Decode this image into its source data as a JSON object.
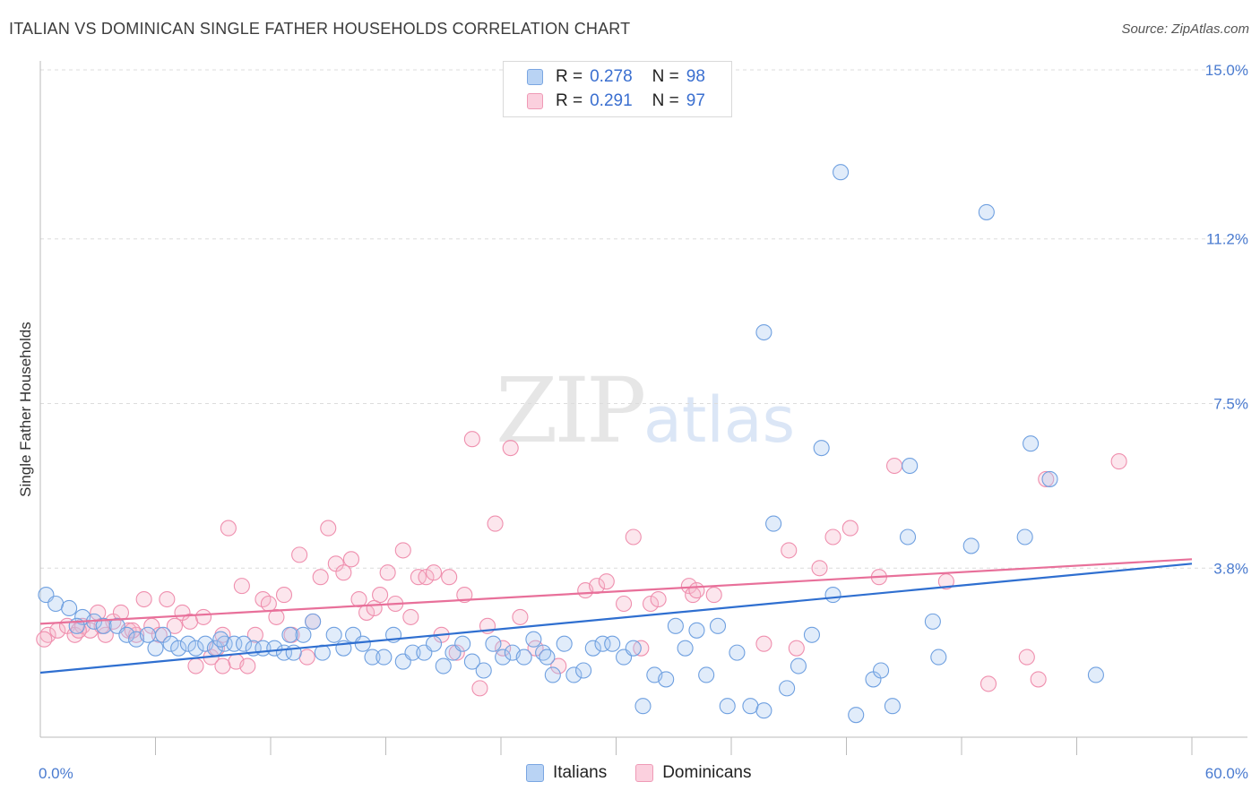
{
  "header": {
    "title": "ITALIAN VS DOMINICAN SINGLE FATHER HOUSEHOLDS CORRELATION CHART",
    "source": "Source: ZipAtlas.com"
  },
  "watermark": {
    "zip": "ZIP",
    "atlas": "atlas"
  },
  "legend": {
    "r_label": "R =",
    "n_label": "N =",
    "rows": [
      {
        "r": "0.278",
        "n": "98",
        "color": "#a8c8f0"
      },
      {
        "r": "0.291",
        "n": "97",
        "color": "#f7b8cc"
      }
    ]
  },
  "bottom_legend": [
    {
      "label": "Italians",
      "color": "#a8c8f0"
    },
    {
      "label": "Dominicans",
      "color": "#f7b8cc"
    }
  ],
  "chart_data": {
    "type": "scatter",
    "title": "ITALIAN VS DOMINICAN SINGLE FATHER HOUSEHOLDS CORRELATION CHART",
    "ylabel": "Single Father Households",
    "xlabel": "",
    "xlim": [
      0,
      60
    ],
    "ylim": [
      0,
      15
    ],
    "y_ticks": [
      {
        "value": 3.8,
        "label": "3.8%"
      },
      {
        "value": 7.5,
        "label": "7.5%"
      },
      {
        "value": 11.2,
        "label": "11.2%"
      },
      {
        "value": 15.0,
        "label": "15.0%"
      }
    ],
    "x_tick_labels": [
      {
        "value": 0,
        "label": "0.0%"
      },
      {
        "value": 60,
        "label": "60.0%"
      }
    ],
    "x_minor_ticks": [
      6,
      12,
      18,
      24,
      30,
      36,
      42,
      48,
      54
    ],
    "grid": true,
    "colors": {
      "italians": "#6fa0e0",
      "dominicans": "#ef8fae",
      "italians_line": "#2f6fd0",
      "dominicans_line": "#e8709a"
    },
    "series": [
      {
        "name": "Italians",
        "trend": {
          "x0": 0,
          "y0": 1.45,
          "x1": 60,
          "y1": 3.9
        },
        "points": [
          [
            0.3,
            3.2
          ],
          [
            0.8,
            3.0
          ],
          [
            1.5,
            2.9
          ],
          [
            2.2,
            2.7
          ],
          [
            2.8,
            2.6
          ],
          [
            3.3,
            2.5
          ],
          [
            4.0,
            2.5
          ],
          [
            4.5,
            2.3
          ],
          [
            5.0,
            2.2
          ],
          [
            5.6,
            2.3
          ],
          [
            6.0,
            2.0
          ],
          [
            6.4,
            2.3
          ],
          [
            6.8,
            2.1
          ],
          [
            7.2,
            2.0
          ],
          [
            7.7,
            2.1
          ],
          [
            8.1,
            2.0
          ],
          [
            8.6,
            2.1
          ],
          [
            9.1,
            2.0
          ],
          [
            9.6,
            2.1
          ],
          [
            10.1,
            2.1
          ],
          [
            10.6,
            2.1
          ],
          [
            11.1,
            2.0
          ],
          [
            11.6,
            2.0
          ],
          [
            12.2,
            2.0
          ],
          [
            12.7,
            1.9
          ],
          [
            13.2,
            1.9
          ],
          [
            13.7,
            2.3
          ],
          [
            14.2,
            2.6
          ],
          [
            14.7,
            1.9
          ],
          [
            15.3,
            2.3
          ],
          [
            15.8,
            2.0
          ],
          [
            16.3,
            2.3
          ],
          [
            16.8,
            2.1
          ],
          [
            17.3,
            1.8
          ],
          [
            17.9,
            1.8
          ],
          [
            18.4,
            2.3
          ],
          [
            18.9,
            1.7
          ],
          [
            19.4,
            1.9
          ],
          [
            20.0,
            1.9
          ],
          [
            20.5,
            2.1
          ],
          [
            21.0,
            1.6
          ],
          [
            21.5,
            1.9
          ],
          [
            22.0,
            2.1
          ],
          [
            22.5,
            1.7
          ],
          [
            23.1,
            1.5
          ],
          [
            23.6,
            2.1
          ],
          [
            24.1,
            1.8
          ],
          [
            24.6,
            1.9
          ],
          [
            25.2,
            1.8
          ],
          [
            25.7,
            2.2
          ],
          [
            26.2,
            1.9
          ],
          [
            26.7,
            1.4
          ],
          [
            27.3,
            2.1
          ],
          [
            27.8,
            1.4
          ],
          [
            28.3,
            1.5
          ],
          [
            28.8,
            2.0
          ],
          [
            29.3,
            2.1
          ],
          [
            29.8,
            2.1
          ],
          [
            30.4,
            1.8
          ],
          [
            30.9,
            2.0
          ],
          [
            31.4,
            0.7
          ],
          [
            32.0,
            1.4
          ],
          [
            32.6,
            1.3
          ],
          [
            33.1,
            2.5
          ],
          [
            33.6,
            2.0
          ],
          [
            34.2,
            2.4
          ],
          [
            34.7,
            1.4
          ],
          [
            35.3,
            2.5
          ],
          [
            35.8,
            0.7
          ],
          [
            36.3,
            1.9
          ],
          [
            37.0,
            0.7
          ],
          [
            37.7,
            0.6
          ],
          [
            38.2,
            4.8
          ],
          [
            38.9,
            1.1
          ],
          [
            39.5,
            1.6
          ],
          [
            40.2,
            2.3
          ],
          [
            40.7,
            6.5
          ],
          [
            41.3,
            3.2
          ],
          [
            42.5,
            0.5
          ],
          [
            43.4,
            1.3
          ],
          [
            43.8,
            1.5
          ],
          [
            44.4,
            0.7
          ],
          [
            45.2,
            4.5
          ],
          [
            45.3,
            6.1
          ],
          [
            46.5,
            2.6
          ],
          [
            46.8,
            1.8
          ],
          [
            48.5,
            4.3
          ],
          [
            49.3,
            11.8
          ],
          [
            51.3,
            4.5
          ],
          [
            51.6,
            6.6
          ],
          [
            52.6,
            5.8
          ],
          [
            55.0,
            1.4
          ],
          [
            37.7,
            9.1
          ],
          [
            41.7,
            12.7
          ],
          [
            13.0,
            2.3
          ],
          [
            9.4,
            2.2
          ],
          [
            26.4,
            1.8
          ],
          [
            1.9,
            2.5
          ]
        ]
      },
      {
        "name": "Dominicans",
        "trend": {
          "x0": 0,
          "y0": 2.55,
          "x1": 60,
          "y1": 4.0
        },
        "points": [
          [
            0.4,
            2.3
          ],
          [
            0.9,
            2.4
          ],
          [
            1.4,
            2.5
          ],
          [
            1.8,
            2.3
          ],
          [
            2.2,
            2.5
          ],
          [
            2.6,
            2.4
          ],
          [
            3.0,
            2.8
          ],
          [
            3.4,
            2.3
          ],
          [
            3.8,
            2.6
          ],
          [
            4.2,
            2.8
          ],
          [
            4.6,
            2.4
          ],
          [
            5.0,
            2.3
          ],
          [
            5.4,
            3.1
          ],
          [
            5.8,
            2.5
          ],
          [
            6.2,
            2.3
          ],
          [
            6.6,
            3.1
          ],
          [
            7.0,
            2.5
          ],
          [
            7.4,
            2.8
          ],
          [
            7.8,
            2.6
          ],
          [
            8.1,
            1.6
          ],
          [
            8.5,
            2.7
          ],
          [
            8.9,
            1.8
          ],
          [
            9.2,
            2.0
          ],
          [
            9.5,
            2.3
          ],
          [
            9.8,
            4.7
          ],
          [
            10.2,
            1.7
          ],
          [
            10.5,
            3.4
          ],
          [
            10.8,
            1.6
          ],
          [
            11.2,
            2.3
          ],
          [
            11.6,
            3.1
          ],
          [
            11.9,
            3.0
          ],
          [
            12.3,
            2.7
          ],
          [
            12.7,
            3.2
          ],
          [
            13.1,
            2.3
          ],
          [
            13.5,
            4.1
          ],
          [
            13.9,
            1.8
          ],
          [
            14.2,
            2.6
          ],
          [
            14.6,
            3.6
          ],
          [
            15.0,
            4.7
          ],
          [
            15.4,
            3.9
          ],
          [
            15.8,
            3.7
          ],
          [
            16.2,
            4.0
          ],
          [
            16.6,
            3.1
          ],
          [
            17.0,
            2.8
          ],
          [
            17.4,
            2.9
          ],
          [
            17.7,
            3.2
          ],
          [
            18.1,
            3.7
          ],
          [
            18.5,
            3.0
          ],
          [
            18.9,
            4.2
          ],
          [
            19.3,
            2.7
          ],
          [
            19.7,
            3.6
          ],
          [
            20.1,
            3.6
          ],
          [
            20.5,
            3.7
          ],
          [
            20.9,
            2.3
          ],
          [
            21.3,
            3.6
          ],
          [
            21.7,
            1.9
          ],
          [
            22.1,
            3.2
          ],
          [
            22.5,
            6.7
          ],
          [
            22.9,
            1.1
          ],
          [
            23.3,
            2.5
          ],
          [
            23.7,
            4.8
          ],
          [
            24.1,
            2.0
          ],
          [
            24.5,
            6.5
          ],
          [
            25.0,
            2.7
          ],
          [
            25.8,
            2.0
          ],
          [
            27.0,
            1.6
          ],
          [
            28.4,
            3.3
          ],
          [
            29.0,
            3.4
          ],
          [
            29.5,
            3.5
          ],
          [
            30.4,
            3.0
          ],
          [
            30.9,
            4.5
          ],
          [
            31.3,
            2.0
          ],
          [
            31.8,
            3.0
          ],
          [
            32.2,
            3.1
          ],
          [
            33.8,
            3.4
          ],
          [
            34.0,
            3.2
          ],
          [
            34.2,
            3.3
          ],
          [
            35.1,
            3.2
          ],
          [
            37.7,
            2.1
          ],
          [
            39.0,
            4.2
          ],
          [
            39.4,
            2.0
          ],
          [
            40.6,
            3.8
          ],
          [
            41.3,
            4.5
          ],
          [
            42.2,
            4.7
          ],
          [
            43.7,
            3.6
          ],
          [
            44.5,
            6.1
          ],
          [
            47.2,
            3.5
          ],
          [
            49.4,
            1.2
          ],
          [
            51.4,
            1.8
          ],
          [
            52.0,
            1.3
          ],
          [
            52.4,
            5.8
          ],
          [
            56.2,
            6.2
          ],
          [
            9.5,
            1.6
          ],
          [
            4.8,
            2.4
          ],
          [
            3.2,
            2.5
          ],
          [
            2.0,
            2.4
          ],
          [
            0.2,
            2.2
          ]
        ]
      }
    ]
  }
}
